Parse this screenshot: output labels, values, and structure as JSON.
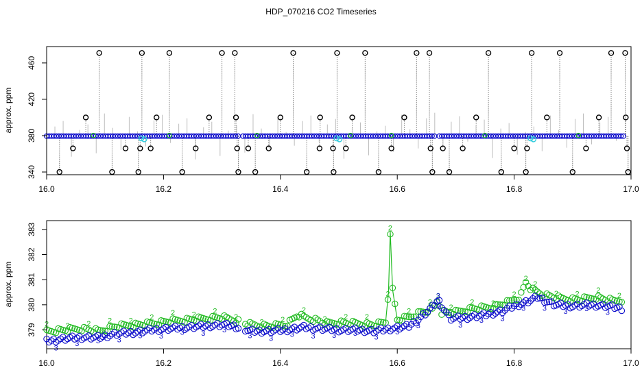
{
  "title": "HDP_070216  CO2 Timeseries",
  "colors": {
    "series1": "#000000",
    "series2": "#22bb22",
    "series3": "#1010cc",
    "highlight": "#33ccdd",
    "spike": "#7a7a7a"
  },
  "chart_data": [
    {
      "type": "scatter",
      "panel": "top",
      "xlabel": "",
      "ylabel": "approx. ppm",
      "xlim": [
        16.0,
        17.0
      ],
      "ylim": [
        337,
        478
      ],
      "xticks": [
        16.0,
        16.2,
        16.4,
        16.6,
        16.8,
        17.0
      ],
      "xtick_labels": [
        "16.0",
        "16.2",
        "16.4",
        "16.6",
        "16.8",
        "17.0"
      ],
      "yticks": [
        340,
        380,
        420,
        460
      ],
      "ytick_labels": [
        "340",
        "380",
        "420",
        "460"
      ],
      "baseline": {
        "start": 16.0,
        "end": 16.99,
        "value": 379.5,
        "gaps": [
          [
            16.33,
            16.335
          ],
          [
            16.665,
            16.668
          ]
        ]
      },
      "highlight_points": [
        {
          "x": 16.162,
          "y": 377
        },
        {
          "x": 16.167,
          "y": 376
        },
        {
          "x": 16.496,
          "y": 377
        },
        {
          "x": 16.501,
          "y": 376
        },
        {
          "x": 16.828,
          "y": 377
        },
        {
          "x": 16.833,
          "y": 376
        }
      ],
      "outliers": [
        {
          "x": 16.022,
          "y": 340
        },
        {
          "x": 16.045,
          "y": 366
        },
        {
          "x": 16.067,
          "y": 400
        },
        {
          "x": 16.09,
          "y": 471
        },
        {
          "x": 16.112,
          "y": 340
        },
        {
          "x": 16.135,
          "y": 366
        },
        {
          "x": 16.157,
          "y": 340
        },
        {
          "x": 16.16,
          "y": 366
        },
        {
          "x": 16.163,
          "y": 471
        },
        {
          "x": 16.178,
          "y": 366
        },
        {
          "x": 16.188,
          "y": 400
        },
        {
          "x": 16.21,
          "y": 471
        },
        {
          "x": 16.232,
          "y": 340
        },
        {
          "x": 16.255,
          "y": 366
        },
        {
          "x": 16.278,
          "y": 400
        },
        {
          "x": 16.3,
          "y": 471
        },
        {
          "x": 16.322,
          "y": 471
        },
        {
          "x": 16.324,
          "y": 400
        },
        {
          "x": 16.326,
          "y": 366
        },
        {
          "x": 16.328,
          "y": 340
        },
        {
          "x": 16.345,
          "y": 366
        },
        {
          "x": 16.357,
          "y": 340
        },
        {
          "x": 16.38,
          "y": 366
        },
        {
          "x": 16.4,
          "y": 400
        },
        {
          "x": 16.422,
          "y": 471
        },
        {
          "x": 16.445,
          "y": 340
        },
        {
          "x": 16.467,
          "y": 366
        },
        {
          "x": 16.468,
          "y": 400
        },
        {
          "x": 16.49,
          "y": 366
        },
        {
          "x": 16.491,
          "y": 340
        },
        {
          "x": 16.497,
          "y": 471
        },
        {
          "x": 16.512,
          "y": 366
        },
        {
          "x": 16.523,
          "y": 400
        },
        {
          "x": 16.545,
          "y": 471
        },
        {
          "x": 16.568,
          "y": 340
        },
        {
          "x": 16.59,
          "y": 366
        },
        {
          "x": 16.612,
          "y": 400
        },
        {
          "x": 16.633,
          "y": 471
        },
        {
          "x": 16.655,
          "y": 471
        },
        {
          "x": 16.657,
          "y": 366
        },
        {
          "x": 16.66,
          "y": 340
        },
        {
          "x": 16.678,
          "y": 366
        },
        {
          "x": 16.689,
          "y": 340
        },
        {
          "x": 16.712,
          "y": 366
        },
        {
          "x": 16.735,
          "y": 400
        },
        {
          "x": 16.756,
          "y": 471
        },
        {
          "x": 16.778,
          "y": 340
        },
        {
          "x": 16.8,
          "y": 366
        },
        {
          "x": 16.82,
          "y": 340
        },
        {
          "x": 16.822,
          "y": 366
        },
        {
          "x": 16.83,
          "y": 471
        },
        {
          "x": 16.856,
          "y": 400
        },
        {
          "x": 16.878,
          "y": 471
        },
        {
          "x": 16.9,
          "y": 340
        },
        {
          "x": 16.923,
          "y": 366
        },
        {
          "x": 16.945,
          "y": 400
        },
        {
          "x": 16.966,
          "y": 471
        },
        {
          "x": 16.99,
          "y": 471
        },
        {
          "x": 16.991,
          "y": 400
        },
        {
          "x": 16.993,
          "y": 366
        },
        {
          "x": 16.995,
          "y": 340
        }
      ]
    },
    {
      "type": "scatter",
      "panel": "bottom",
      "xlabel": "",
      "ylabel": "approx. ppm",
      "xlim": [
        16.0,
        17.0
      ],
      "ylim": [
        378.25,
        383.35
      ],
      "xticks": [
        16.0,
        16.2,
        16.4,
        16.6,
        16.8,
        17.0
      ],
      "xtick_labels": [
        "16.0",
        "16.2",
        "16.4",
        "16.6",
        "16.8",
        "17.0"
      ],
      "yticks": [
        379,
        380,
        381,
        382,
        383
      ],
      "ytick_labels": [
        "379",
        "380",
        "381",
        "382",
        "383"
      ],
      "series": [
        {
          "label": "2",
          "color": "#22bb22",
          "points": [
            [
              16.0,
              378.95
            ],
            [
              16.03,
              379.0
            ],
            [
              16.06,
              379.05
            ],
            [
              16.09,
              378.95
            ],
            [
              16.12,
              379.15
            ],
            [
              16.15,
              379.2
            ],
            [
              16.18,
              379.25
            ],
            [
              16.21,
              379.35
            ],
            [
              16.24,
              379.4
            ],
            [
              16.27,
              379.45
            ],
            [
              16.3,
              379.5
            ],
            [
              16.32,
              379.4
            ],
            [
              16.35,
              379.2
            ],
            [
              16.38,
              379.15
            ],
            [
              16.41,
              379.2
            ],
            [
              16.43,
              379.6
            ],
            [
              16.44,
              379.5
            ],
            [
              16.46,
              379.4
            ],
            [
              16.48,
              379.25
            ],
            [
              16.5,
              379.3
            ],
            [
              16.53,
              379.25
            ],
            [
              16.56,
              379.2
            ],
            [
              16.58,
              379.3
            ],
            [
              16.585,
              380.5
            ],
            [
              16.588,
              382.9
            ],
            [
              16.592,
              380.6
            ],
            [
              16.6,
              379.4
            ],
            [
              16.62,
              379.5
            ],
            [
              16.64,
              379.7
            ],
            [
              16.66,
              379.8
            ],
            [
              16.67,
              380.2
            ],
            [
              16.675,
              379.7
            ],
            [
              16.7,
              379.7
            ],
            [
              16.73,
              379.85
            ],
            [
              16.76,
              379.9
            ],
            [
              16.79,
              380.1
            ],
            [
              16.81,
              380.3
            ],
            [
              16.82,
              380.9
            ],
            [
              16.83,
              380.6
            ],
            [
              16.85,
              380.4
            ],
            [
              16.88,
              380.25
            ],
            [
              16.91,
              380.2
            ],
            [
              16.94,
              380.3
            ],
            [
              16.97,
              380.15
            ],
            [
              16.985,
              380.2
            ]
          ]
        },
        {
          "label": "3",
          "color": "#1010cc",
          "points": [
            [
              16.0,
              378.55
            ],
            [
              16.03,
              378.65
            ],
            [
              16.06,
              378.7
            ],
            [
              16.09,
              378.7
            ],
            [
              16.12,
              378.85
            ],
            [
              16.15,
              378.9
            ],
            [
              16.18,
              379.0
            ],
            [
              16.21,
              379.05
            ],
            [
              16.24,
              379.1
            ],
            [
              16.27,
              379.15
            ],
            [
              16.3,
              379.2
            ],
            [
              16.32,
              379.15
            ],
            [
              16.35,
              378.95
            ],
            [
              16.38,
              378.95
            ],
            [
              16.41,
              379.0
            ],
            [
              16.44,
              379.1
            ],
            [
              16.47,
              379.05
            ],
            [
              16.5,
              379.0
            ],
            [
              16.53,
              379.0
            ],
            [
              16.56,
              378.95
            ],
            [
              16.59,
              379.05
            ],
            [
              16.62,
              379.15
            ],
            [
              16.64,
              379.5
            ],
            [
              16.66,
              379.9
            ],
            [
              16.67,
              380.2
            ],
            [
              16.69,
              379.45
            ],
            [
              16.72,
              379.5
            ],
            [
              16.75,
              379.6
            ],
            [
              16.78,
              379.75
            ],
            [
              16.8,
              379.95
            ],
            [
              16.82,
              380.1
            ],
            [
              16.84,
              380.3
            ],
            [
              16.87,
              380.0
            ],
            [
              16.9,
              379.95
            ],
            [
              16.93,
              380.0
            ],
            [
              16.96,
              379.95
            ],
            [
              16.985,
              379.85
            ]
          ]
        }
      ]
    }
  ]
}
